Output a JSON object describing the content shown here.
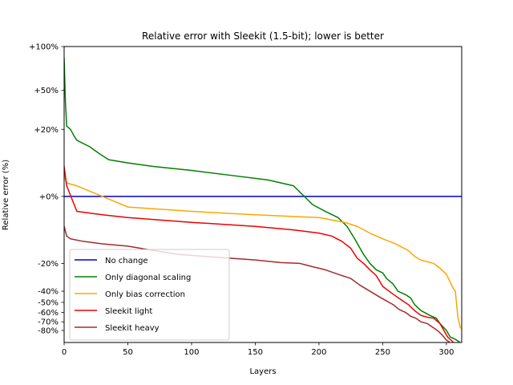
{
  "chart_data": {
    "type": "line",
    "title": "Relative error with Sleekit (1.5-bit); lower is better",
    "xlabel": "Layers",
    "ylabel": "Relative error (%)",
    "xlim": [
      0,
      312
    ],
    "ylim": [
      -95,
      100
    ],
    "y_transform": "signed_sqrt",
    "x_ticks": [
      0,
      50,
      100,
      150,
      200,
      250,
      300
    ],
    "y_ticks": [
      {
        "value": 100,
        "label": "+100%"
      },
      {
        "value": 50,
        "label": "+50%"
      },
      {
        "value": 20,
        "label": "+20%"
      },
      {
        "value": 0,
        "label": "+0%"
      },
      {
        "value": -20,
        "label": "-20%"
      },
      {
        "value": -40,
        "label": "-40%"
      },
      {
        "value": -50,
        "label": "-50%"
      },
      {
        "value": -60,
        "label": "-60%"
      },
      {
        "value": -70,
        "label": "-70%"
      },
      {
        "value": -80,
        "label": "-80%"
      }
    ],
    "legend_position": "lower-left",
    "series": [
      {
        "name": "No change",
        "color": "#0000cc",
        "points": [
          [
            0,
            0
          ],
          [
            312,
            0
          ]
        ]
      },
      {
        "name": "Only diagonal scaling",
        "color": "#008000",
        "points": [
          [
            0,
            85
          ],
          [
            1,
            40
          ],
          [
            2,
            22
          ],
          [
            5,
            20
          ],
          [
            8,
            16
          ],
          [
            10,
            14
          ],
          [
            20,
            11
          ],
          [
            28,
            8
          ],
          [
            35,
            6
          ],
          [
            50,
            5
          ],
          [
            70,
            4
          ],
          [
            100,
            3
          ],
          [
            130,
            2
          ],
          [
            160,
            1.2
          ],
          [
            180,
            0.5
          ],
          [
            195,
            -0.3
          ],
          [
            205,
            -1
          ],
          [
            215,
            -2
          ],
          [
            222,
            -4
          ],
          [
            228,
            -8
          ],
          [
            235,
            -15
          ],
          [
            240,
            -20
          ],
          [
            245,
            -24
          ],
          [
            250,
            -26
          ],
          [
            253,
            -30
          ],
          [
            258,
            -34
          ],
          [
            262,
            -40
          ],
          [
            268,
            -43
          ],
          [
            272,
            -46
          ],
          [
            275,
            -52
          ],
          [
            280,
            -58
          ],
          [
            287,
            -63
          ],
          [
            292,
            -66
          ],
          [
            295,
            -72
          ],
          [
            300,
            -80
          ],
          [
            303,
            -88
          ],
          [
            306,
            -90
          ],
          [
            310,
            -94
          ]
        ]
      },
      {
        "name": "Only bias correction",
        "color": "#ffa500",
        "points": [
          [
            0,
            2
          ],
          [
            2,
            0.8
          ],
          [
            10,
            0.5
          ],
          [
            50,
            -0.5
          ],
          [
            100,
            -1
          ],
          [
            150,
            -1.5
          ],
          [
            200,
            -2
          ],
          [
            220,
            -3
          ],
          [
            230,
            -4
          ],
          [
            240,
            -6
          ],
          [
            250,
            -8
          ],
          [
            260,
            -10
          ],
          [
            270,
            -13
          ],
          [
            275,
            -16
          ],
          [
            280,
            -18
          ],
          [
            285,
            -19
          ],
          [
            290,
            -20
          ],
          [
            295,
            -23
          ],
          [
            300,
            -27
          ],
          [
            305,
            -37
          ],
          [
            307,
            -40
          ],
          [
            309,
            -65
          ],
          [
            311,
            -77
          ]
        ]
      },
      {
        "name": "Sleekit light",
        "color": "#ee0000",
        "points": [
          [
            0,
            4
          ],
          [
            2,
            0.5
          ],
          [
            10,
            -1
          ],
          [
            30,
            -1.5
          ],
          [
            50,
            -2
          ],
          [
            100,
            -3
          ],
          [
            150,
            -4
          ],
          [
            180,
            -5
          ],
          [
            200,
            -6
          ],
          [
            210,
            -7
          ],
          [
            218,
            -9
          ],
          [
            225,
            -12
          ],
          [
            230,
            -17
          ],
          [
            235,
            -20
          ],
          [
            240,
            -24
          ],
          [
            245,
            -28
          ],
          [
            250,
            -36
          ],
          [
            255,
            -40
          ],
          [
            260,
            -44
          ],
          [
            265,
            -48
          ],
          [
            270,
            -52
          ],
          [
            275,
            -58
          ],
          [
            280,
            -63
          ],
          [
            285,
            -65
          ],
          [
            290,
            -66
          ],
          [
            295,
            -72
          ],
          [
            298,
            -80
          ],
          [
            301,
            -88
          ],
          [
            303,
            -91
          ],
          [
            305,
            -94
          ]
        ]
      },
      {
        "name": "Sleekit heavy",
        "color": "#a52a2a",
        "points": [
          [
            0,
            -4
          ],
          [
            2,
            -7
          ],
          [
            5,
            -8
          ],
          [
            15,
            -9
          ],
          [
            30,
            -10
          ],
          [
            50,
            -11
          ],
          [
            70,
            -13
          ],
          [
            90,
            -15
          ],
          [
            110,
            -16
          ],
          [
            130,
            -17
          ],
          [
            150,
            -18
          ],
          [
            170,
            -19.5
          ],
          [
            185,
            -20
          ],
          [
            195,
            -22
          ],
          [
            205,
            -24
          ],
          [
            215,
            -27
          ],
          [
            225,
            -30
          ],
          [
            232,
            -35
          ],
          [
            240,
            -40
          ],
          [
            246,
            -44
          ],
          [
            252,
            -48
          ],
          [
            258,
            -52
          ],
          [
            263,
            -57
          ],
          [
            268,
            -60
          ],
          [
            272,
            -64
          ],
          [
            276,
            -66
          ],
          [
            280,
            -70
          ],
          [
            285,
            -72
          ],
          [
            289,
            -76
          ],
          [
            293,
            -80
          ],
          [
            297,
            -86
          ],
          [
            300,
            -92
          ],
          [
            302,
            -94
          ]
        ]
      }
    ]
  }
}
